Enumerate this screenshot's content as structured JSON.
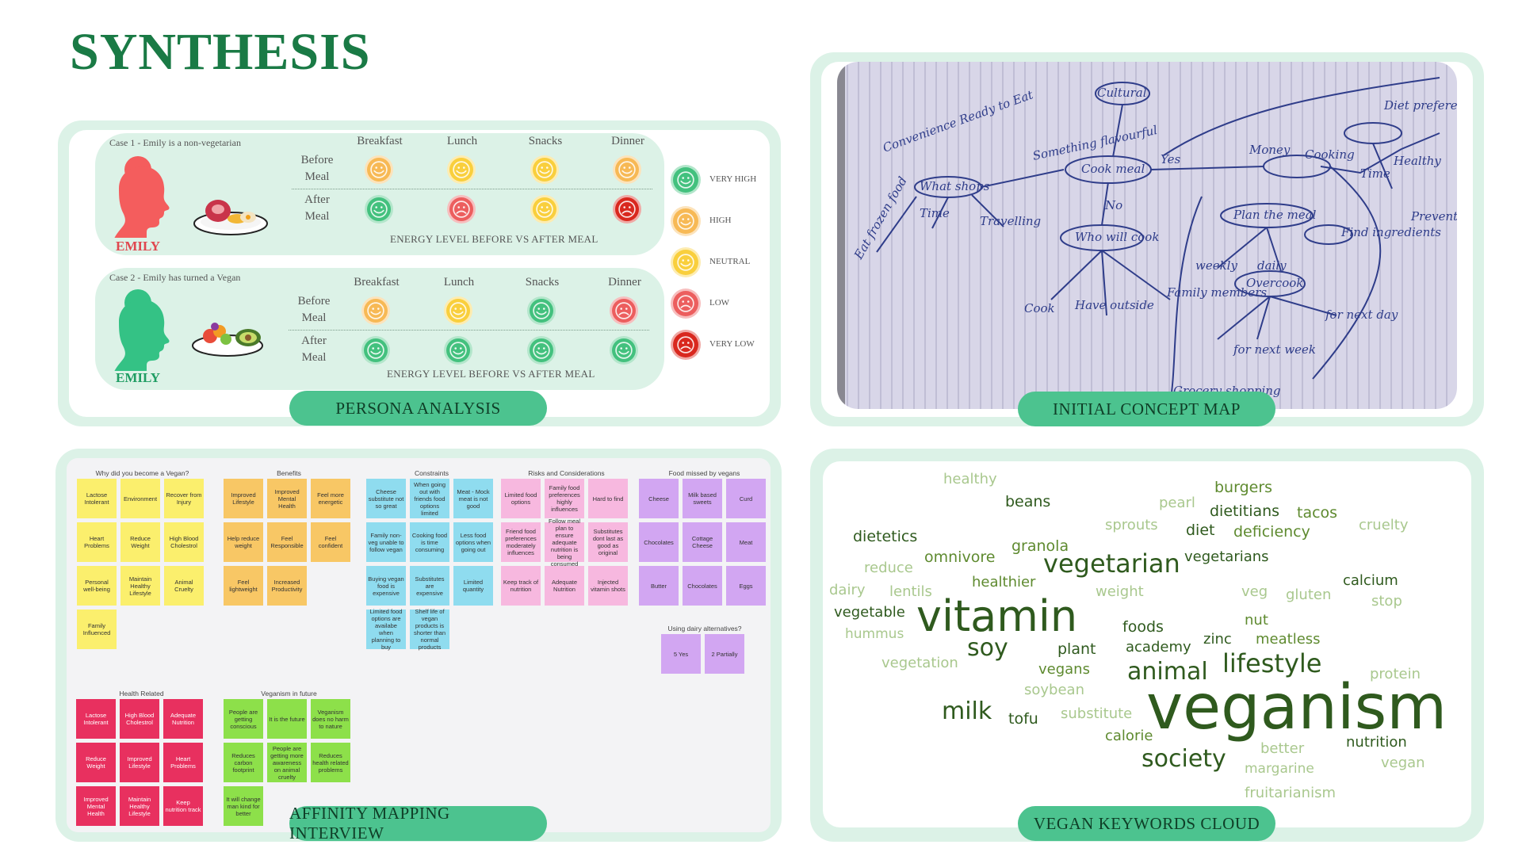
{
  "title": "SYNTHESIS",
  "persona": {
    "label": "PERSONA ANALYSIS",
    "meals": [
      "Breakfast",
      "Lunch",
      "Snacks",
      "Dinner"
    ],
    "before": [
      "Before",
      "Meal"
    ],
    "after": [
      "After",
      "Meal"
    ],
    "energy": "ENERGY LEVEL BEFORE VS AFTER MEAL",
    "name": "EMILY",
    "case1": {
      "title": "Case 1 - Emily is a non-vegetarian",
      "before": [
        "high",
        "neutral",
        "neutral",
        "high"
      ],
      "after": [
        "very-high",
        "low",
        "neutral",
        "very-low"
      ]
    },
    "case2": {
      "title": "Case 2 - Emily has turned a Vegan",
      "before": [
        "high",
        "neutral",
        "very-high",
        "low"
      ],
      "after": [
        "very-high",
        "very-high",
        "very-high",
        "very-high"
      ]
    },
    "legend": [
      {
        "key": "very-high",
        "label": "VERY HIGH"
      },
      {
        "key": "high",
        "label": "HIGH"
      },
      {
        "key": "neutral",
        "label": "NEUTRAL"
      },
      {
        "key": "low",
        "label": "LOW"
      },
      {
        "key": "very-low",
        "label": "VERY LOW"
      }
    ],
    "colors": {
      "very-high": "#43c17e",
      "high": "#f7b955",
      "neutral": "#f9cf3d",
      "low": "#ec5e5e",
      "very-low": "#d9281e",
      "emily1": "#f45d5d",
      "emily2": "#34c285"
    }
  },
  "concept": {
    "label": "INITIAL CONCEPT MAP",
    "words": [
      "Cultural",
      "Convenience Ready to Eat",
      "Something flavourful",
      "Cook meal",
      "Yes",
      "No",
      "What shops",
      "Time",
      "Travelling",
      "Who will cook",
      "Cook",
      "Have outside",
      "Family members",
      "Plan the meal",
      "weekly",
      "daily",
      "Overcook",
      "for next day",
      "Money",
      "Time",
      "Diet preference",
      "Cooking",
      "Healthy",
      "Prevents",
      "Find ingredients",
      "Eat frozen food",
      "Grocery shopping",
      "for next week"
    ]
  },
  "affinity": {
    "label": "AFFINITY MAPPING INTERVIEW",
    "groups": [
      {
        "title": "Why did you become a Vegan?",
        "color": "#fbef6d",
        "items": [
          "Lactose Intolerant",
          "Environment",
          "Recover from Injury",
          "Heart Problems",
          "Reduce Weight",
          "High Blood Cholestrol",
          "Personal well-being",
          "Maintain Healthy Lifestyle",
          "Animal Cruelty",
          "Family Influenced"
        ]
      },
      {
        "title": "Benefits",
        "color": "#f8c765",
        "items": [
          "Improved Lifestyle",
          "Improved Mental Health",
          "Feel more energetic",
          "Help reduce weight",
          "Feel Responsible",
          "Feel confident",
          "Feel lightweight",
          "Increased Productivity"
        ]
      },
      {
        "title": "Constraints",
        "color": "#8fdcef",
        "items": [
          "Cheese substitute not so great",
          "When going out with friends food options limited",
          "Meat - Mock meat is not good",
          "Family non-veg unable to follow vegan",
          "Cooking food is time consuming",
          "Less food options when going out",
          "Buying vegan food is expensive",
          "Substitutes are expensive",
          "Limited quantity",
          "Limited food options are availabe when planning to buy",
          "Shelf life of vegan products is shorter than normal products"
        ]
      },
      {
        "title": "Risks and Considerations",
        "color": "#f7b8df",
        "items": [
          "Limited food options",
          "Family food preferences highly influences",
          "Hard to find",
          "Friend food preferences moderately influences",
          "Follow meal plan to ensure adequate nutrition is being consumed",
          "Substitutes dont last as good as original",
          "Keep track of nutrition",
          "Adequate Nutrition",
          "Injected vitamin shots"
        ]
      },
      {
        "title": "Food missed by vegans",
        "color": "#d2a6f2",
        "items": [
          "Cheese",
          "Milk based sweets",
          "Curd",
          "Chocolates",
          "Cottage Cheese",
          "Meat",
          "Butter",
          "Chocolates",
          "Eggs"
        ]
      },
      {
        "title": "Using dairy alternatives?",
        "color": "#d2a6f2",
        "items": [
          "5 Yes",
          "2 Partially"
        ]
      },
      {
        "title": "Health Related",
        "color": "#e8305f",
        "items": [
          "Lactose Intolerant",
          "High Blood Cholestrol",
          "Adequate Nutrition",
          "Reduce Weight",
          "Improved Lifestyle",
          "Heart Problems",
          "Improved Mental Health",
          "Maintain Healthy Lifestyle",
          "Keep nutrition track"
        ]
      },
      {
        "title": "Veganism in future",
        "color": "#8de04a",
        "items": [
          "People are getting conscious",
          "It is the future",
          "Veganism does no harm to nature",
          "Reduces carbon footprint",
          "People are getting more awareness on animal cruelty",
          "Reduces health related problems",
          "It will change man kind for better"
        ]
      }
    ]
  },
  "cloud": {
    "label": "VEGAN KEYWORDS CLOUD",
    "words": [
      "healthy",
      "burgers",
      "beans",
      "pearl",
      "dietitians",
      "tacos",
      "sprouts",
      "diet",
      "deficiency",
      "cruelty",
      "dietetics",
      "granola",
      "reduce",
      "omnivore",
      "vegetarian",
      "vegetarians",
      "dairy",
      "lentils",
      "healthier",
      "weight",
      "veg",
      "gluten",
      "calcium",
      "stop",
      "vegetable",
      "vitamin",
      "foods",
      "nut",
      "hummus",
      "soy",
      "plant",
      "academy",
      "zinc",
      "meatless",
      "vegetation",
      "vegans",
      "lifestyle",
      "animal",
      "protein",
      "soybean",
      "veganism",
      "milk",
      "tofu",
      "substitute",
      "calorie",
      "better",
      "nutrition",
      "society",
      "margarine",
      "vegan",
      "fruitarianism"
    ]
  }
}
